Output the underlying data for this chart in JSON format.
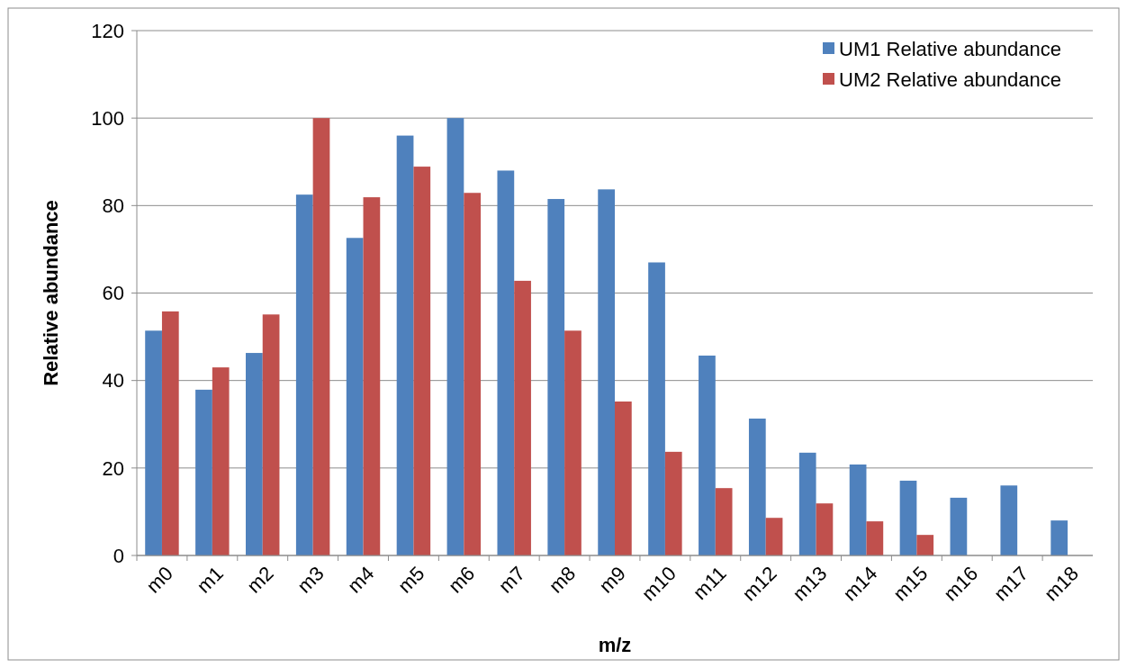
{
  "chart_data": {
    "type": "bar",
    "xlabel": "m/z",
    "ylabel": "Relative abundance",
    "categories": [
      "m0",
      "m1",
      "m2",
      "m3",
      "m4",
      "m5",
      "m6",
      "m7",
      "m8",
      "m9",
      "m10",
      "m11",
      "m12",
      "m13",
      "m14",
      "m15",
      "m16",
      "m17",
      "m18"
    ],
    "series": [
      {
        "name": "UM1 Relative abundance",
        "color": "#4f81bd",
        "values": [
          51.4,
          37.9,
          46.3,
          82.5,
          72.6,
          96,
          100,
          88,
          81.5,
          83.7,
          67,
          45.7,
          31.3,
          23.5,
          20.8,
          17.1,
          13.2,
          16,
          8
        ]
      },
      {
        "name": "UM2 Relative abundance",
        "color": "#c0504d",
        "values": [
          55.8,
          43,
          55.1,
          100,
          81.9,
          88.9,
          82.9,
          62.8,
          51.4,
          35.2,
          23.7,
          15.4,
          8.6,
          11.9,
          7.8,
          4.7,
          null,
          null,
          null
        ]
      }
    ],
    "ylim": [
      0,
      120
    ],
    "yticks": [
      0,
      20,
      40,
      60,
      80,
      100,
      120
    ],
    "grid": "y",
    "legend": "top right"
  }
}
